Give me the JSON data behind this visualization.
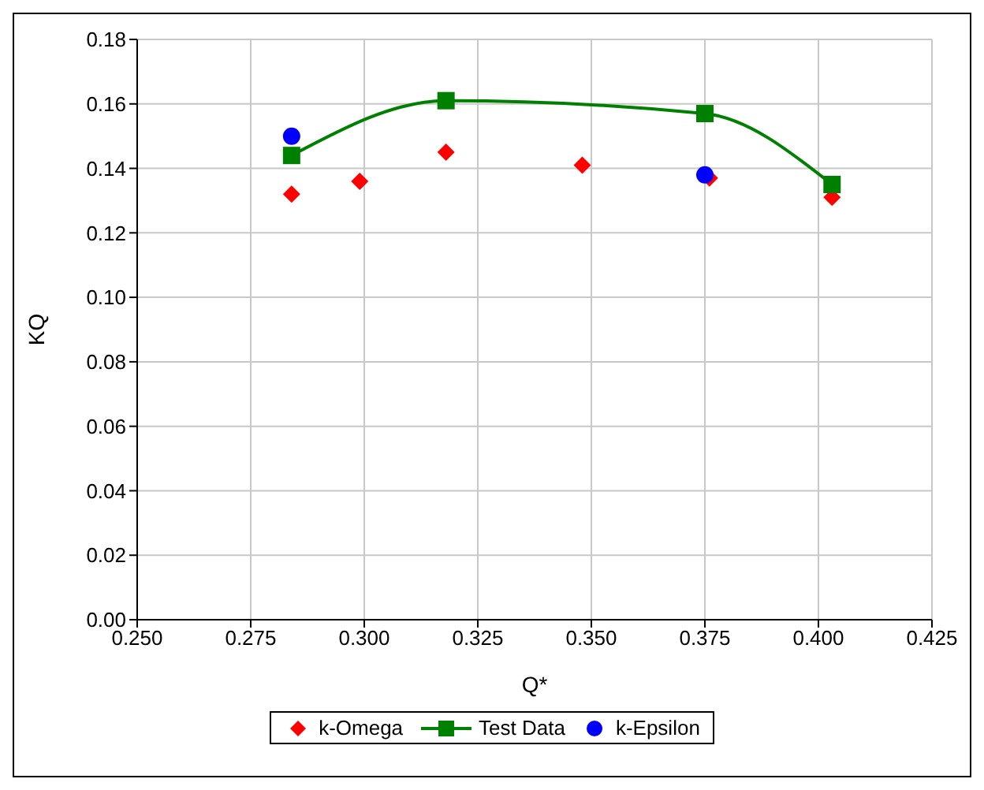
{
  "chart_data": {
    "type": "scatter",
    "xlabel": "Q*",
    "ylabel": "KQ",
    "xlim": [
      0.25,
      0.425
    ],
    "xticks": [
      {
        "value": 0.25,
        "label": "0.250"
      },
      {
        "value": 0.275,
        "label": "0.275"
      },
      {
        "value": 0.3,
        "label": "0.300"
      },
      {
        "value": 0.325,
        "label": "0.325"
      },
      {
        "value": 0.35,
        "label": "0.350"
      },
      {
        "value": 0.375,
        "label": "0.375"
      },
      {
        "value": 0.4,
        "label": "0.400"
      },
      {
        "value": 0.425,
        "label": "0.425"
      }
    ],
    "ylim": [
      0,
      0.18
    ],
    "yticks": [
      {
        "value": 0,
        "label": "0.00"
      },
      {
        "value": 0.02,
        "label": "0.02"
      },
      {
        "value": 0.04,
        "label": "0.04"
      },
      {
        "value": 0.06,
        "label": "0.06"
      },
      {
        "value": 0.08,
        "label": "0.08"
      },
      {
        "value": 0.1,
        "label": "0.10"
      },
      {
        "value": 0.12,
        "label": "0.12"
      },
      {
        "value": 0.14,
        "label": "0.14"
      },
      {
        "value": 0.16,
        "label": "0.16"
      },
      {
        "value": 0.18,
        "label": "0.18"
      }
    ],
    "grid": true,
    "legend": "bottom",
    "series": [
      {
        "name": "k-Omega",
        "marker": "diamond",
        "color": "#ff0000",
        "x": [
          0.284,
          0.299,
          0.318,
          0.348,
          0.376,
          0.403
        ],
        "values": [
          0.132,
          0.136,
          0.145,
          0.141,
          0.137,
          0.131
        ]
      },
      {
        "name": "Test Data",
        "type": "line",
        "marker": "square",
        "line_style": "solid",
        "color": "#008000",
        "x": [
          0.284,
          0.318,
          0.375,
          0.403
        ],
        "values": [
          0.144,
          0.161,
          0.157,
          0.135
        ]
      },
      {
        "name": "k-Epsilon",
        "marker": "circle",
        "color": "#0000ff",
        "x": [
          0.284,
          0.375
        ],
        "values": [
          0.15,
          0.138
        ]
      }
    ]
  }
}
